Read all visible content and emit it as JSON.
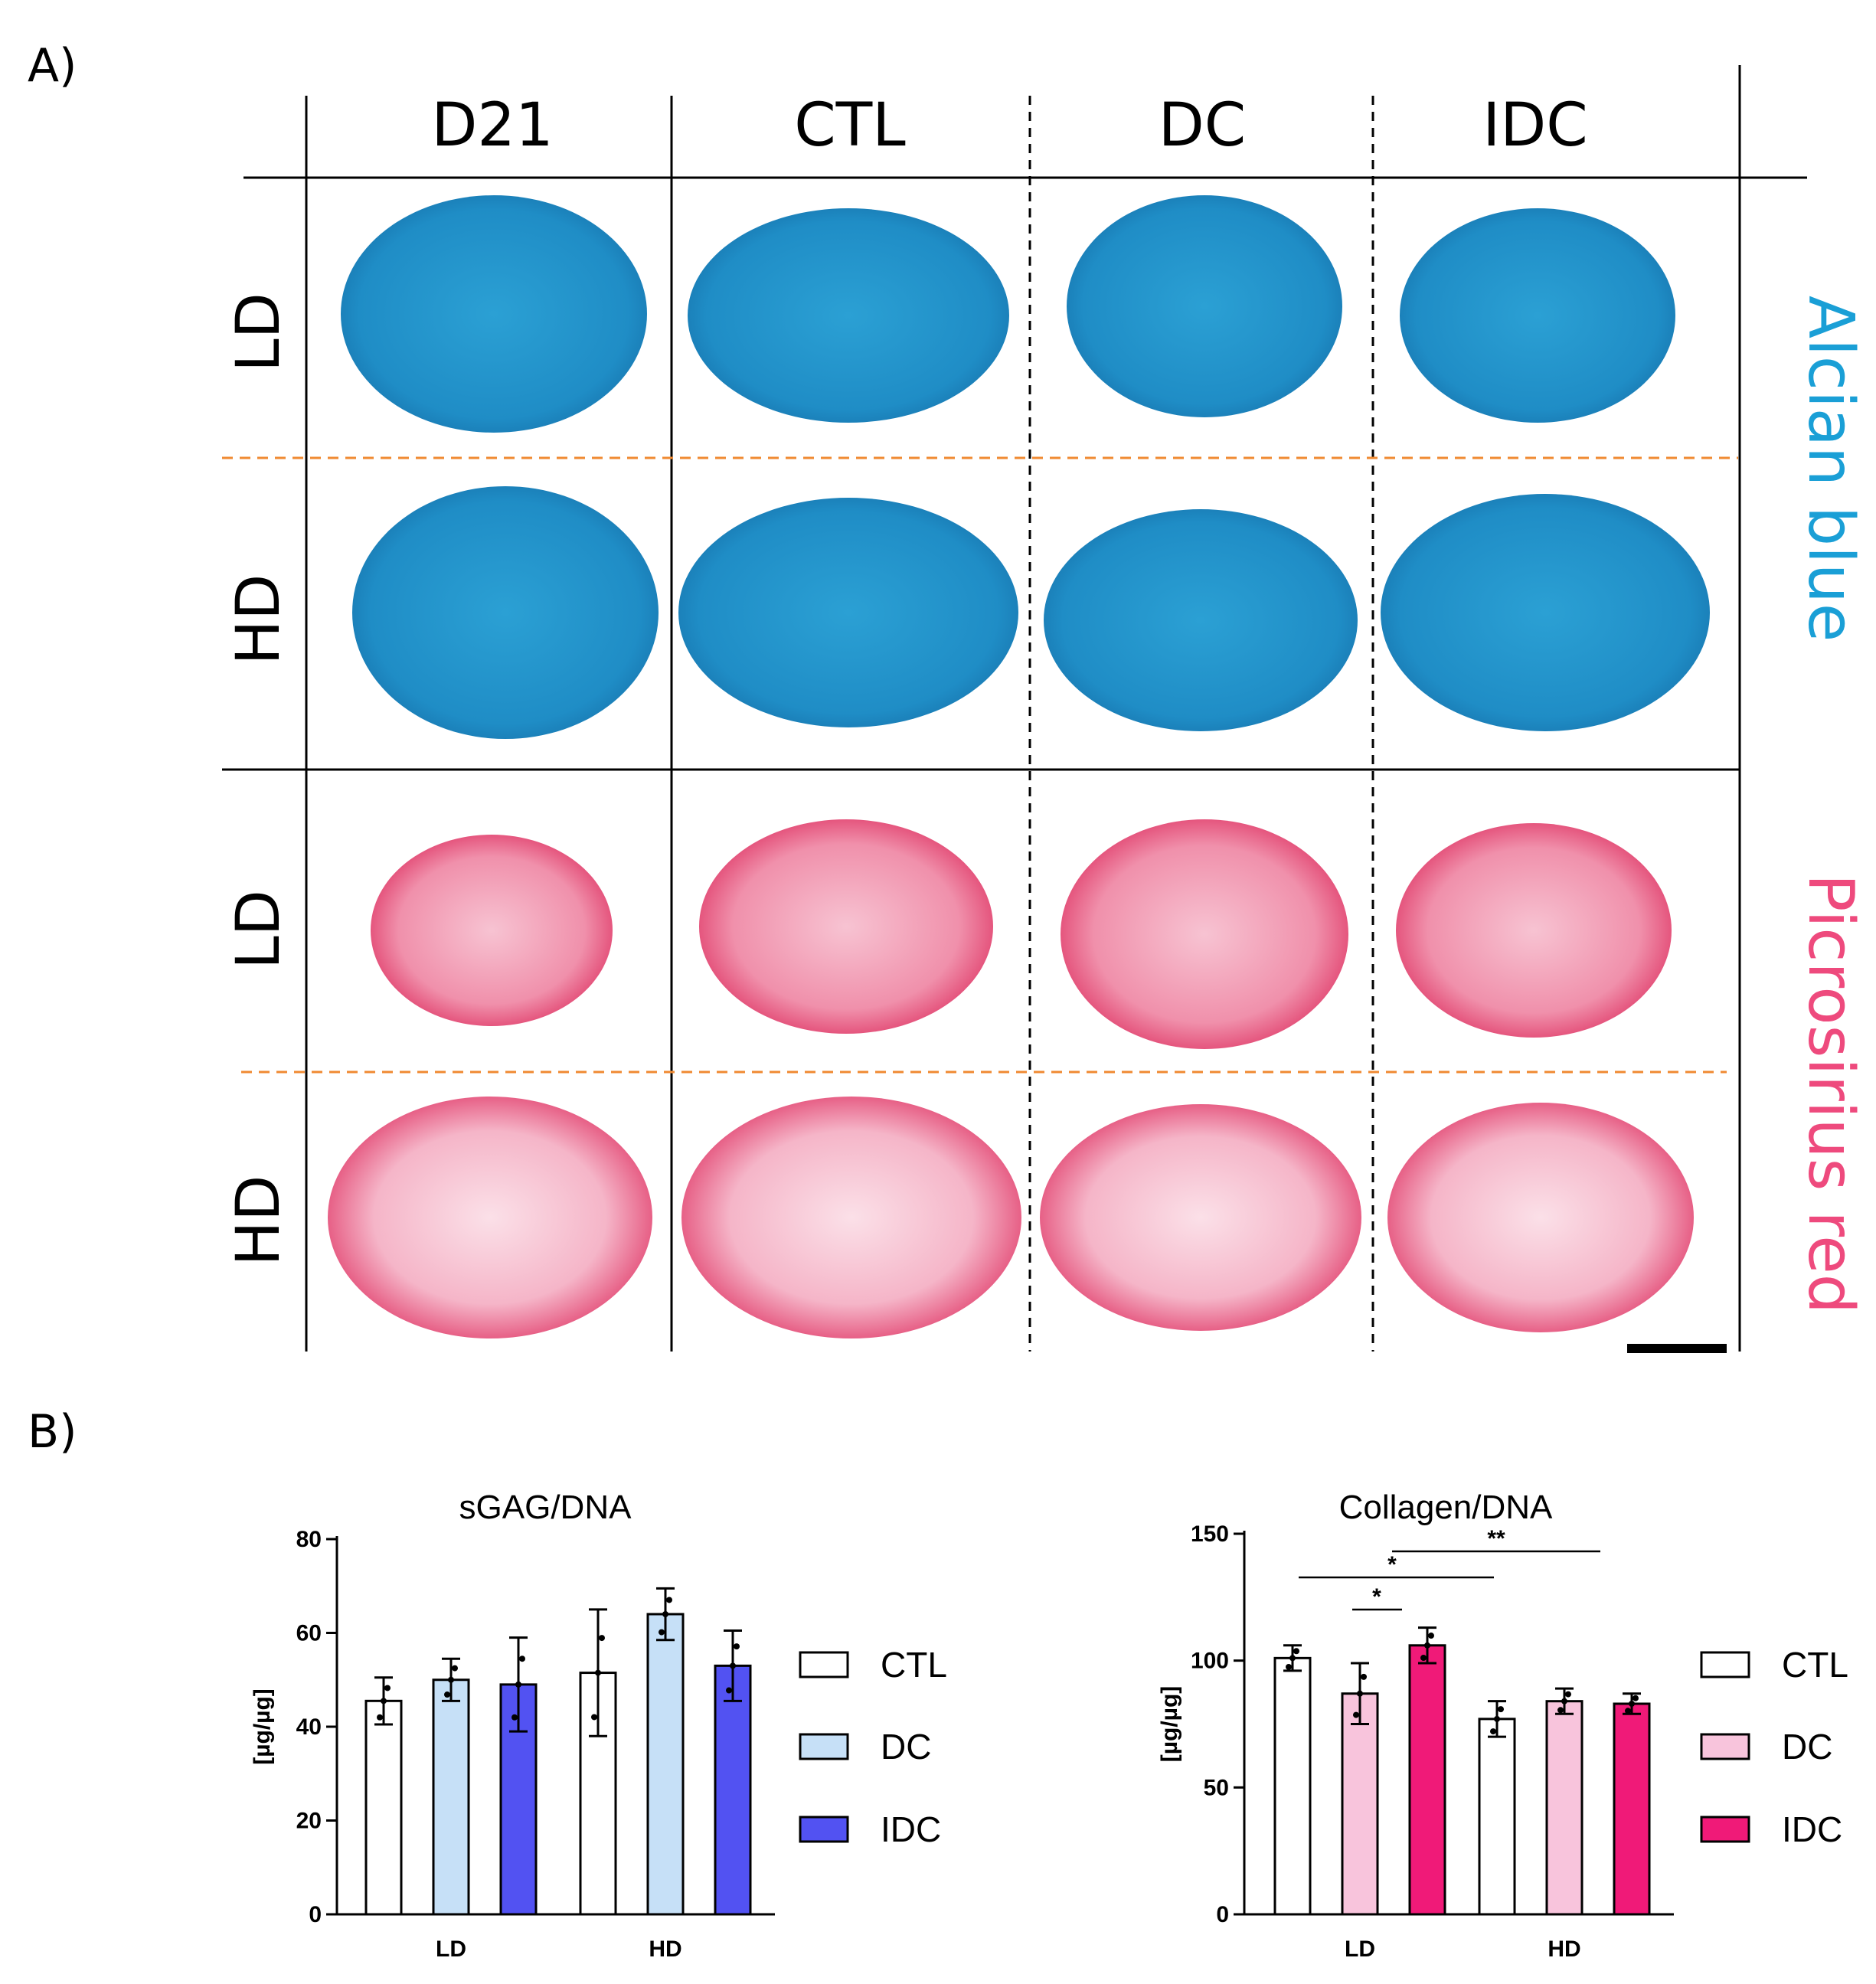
{
  "panel_a": {
    "label": "A)",
    "columns": [
      "D21",
      "CTL",
      "DC",
      "IDC"
    ],
    "rows": [
      "LD",
      "HD",
      "LD",
      "HD"
    ],
    "stains": [
      {
        "label": "Alcian blue",
        "color": "#1a9fd6"
      },
      {
        "label": "Picrosirius red",
        "color": "#ee4a7d"
      }
    ],
    "tissue_colors": {
      "blue_fill": "#1f96c9",
      "blue_edge": "#1a7db3",
      "red_fill": "#f5b7c8",
      "red_edge": "#e0436f"
    },
    "divider_color": "#f08a32"
  },
  "panel_b": {
    "label": "B)",
    "legend_sgag": [
      "CTL",
      "DC",
      "IDC"
    ],
    "legend_collagen": [
      "CTL",
      "DC",
      "IDC"
    ]
  },
  "chart_data": [
    {
      "type": "bar",
      "title": "sGAG/DNA",
      "ylabel": "[µg/µg]",
      "xlabel": "",
      "categories": [
        "LD",
        "HD"
      ],
      "ylim": [
        0,
        80
      ],
      "yticks": [
        0,
        20,
        40,
        60,
        80
      ],
      "series": [
        {
          "name": "CTL",
          "color": "#ffffff",
          "values": [
            45.5,
            51.5
          ],
          "errors": [
            5,
            13.5
          ]
        },
        {
          "name": "DC",
          "color": "#c6e0f7",
          "values": [
            50,
            64
          ],
          "errors": [
            4.5,
            5.5
          ]
        },
        {
          "name": "IDC",
          "color": "#5252f2",
          "values": [
            49,
            53
          ],
          "errors": [
            10,
            7.5
          ]
        }
      ]
    },
    {
      "type": "bar",
      "title": "Collagen/DNA",
      "ylabel": "[µg/µg]",
      "xlabel": "",
      "categories": [
        "LD",
        "HD"
      ],
      "ylim": [
        0,
        150
      ],
      "yticks": [
        0,
        50,
        100,
        150
      ],
      "series": [
        {
          "name": "CTL",
          "color": "#ffffff",
          "values": [
            101,
            77
          ],
          "errors": [
            5,
            7
          ]
        },
        {
          "name": "DC",
          "color": "#f8c4dc",
          "values": [
            87,
            84
          ],
          "errors": [
            12,
            5
          ]
        },
        {
          "name": "IDC",
          "color": "#f01a78",
          "values": [
            106,
            83
          ],
          "errors": [
            7,
            4
          ]
        }
      ],
      "annotations": [
        "*",
        "*",
        "**"
      ]
    }
  ]
}
